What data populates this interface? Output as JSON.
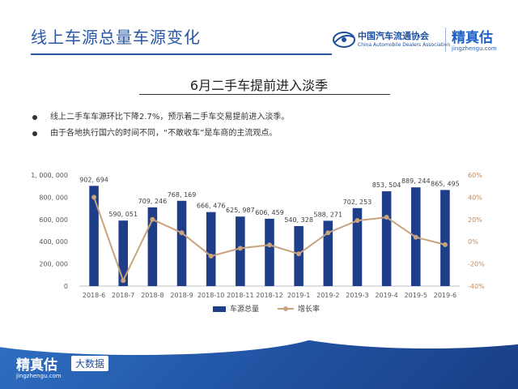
{
  "header": {
    "title": "线上车源总量车源变化",
    "logo_association_cn": "中国汽车流通协会",
    "logo_association_en": "China Automobile Dealers Association",
    "logo_brand_cn": "精真估",
    "logo_brand_en": "jingzhengu.com"
  },
  "subtitle": "6月二手车提前进入淡季",
  "bullets": [
    "线上二手车车源环比下降2.7%，预示着二手车交易提前进入淡季。",
    "由于各地执行国六的时间不同，“不敢收车”是车商的主流观点。"
  ],
  "footer": {
    "brand_cn": "精真估",
    "brand_en": "jingzhengu.com",
    "badge": "大数据"
  },
  "colors": {
    "title_blue": "#2a57a5",
    "bar": "#1f3e8a",
    "line": "#c9a27e",
    "footer": "#1f4f9e"
  },
  "chart_data": {
    "type": "bar",
    "categories": [
      "2018-6",
      "2018-7",
      "2018-8",
      "2018-9",
      "2018-10",
      "2018-11",
      "2018-12",
      "2019-1",
      "2019-2",
      "2019-3",
      "2019-4",
      "2019-5",
      "2019-6"
    ],
    "series": [
      {
        "name": "车源总量",
        "type": "bar",
        "axis": "left",
        "values": [
          902694,
          590051,
          709246,
          768169,
          666476,
          625987,
          606459,
          540328,
          588271,
          702253,
          853504,
          889244,
          865495
        ],
        "labels": [
          "902, 694",
          "590, 051",
          "709, 246",
          "768, 169",
          "666, 476",
          "625, 987",
          "606, 459",
          "540, 328",
          "588, 271",
          "702, 253",
          "853, 504",
          "889, 244",
          "865, 495"
        ]
      },
      {
        "name": "增长率",
        "type": "line",
        "axis": "right",
        "values": [
          0.4,
          -0.35,
          0.2,
          0.08,
          -0.13,
          -0.06,
          -0.03,
          -0.11,
          0.08,
          0.19,
          0.22,
          0.04,
          -0.027
        ]
      }
    ],
    "y_left": {
      "min": 0,
      "max": 1000000,
      "ticks": [
        0,
        200000,
        400000,
        600000,
        800000,
        1000000
      ],
      "tick_labels": [
        "0",
        "200, 000",
        "400, 000",
        "600, 000",
        "800, 000",
        "1, 000, 000"
      ]
    },
    "y_right": {
      "min": -0.4,
      "max": 0.6,
      "ticks": [
        -0.4,
        -0.2,
        0,
        0.2,
        0.4,
        0.6
      ],
      "tick_labels": [
        "-40%",
        "-20%",
        "0%",
        "20%",
        "40%",
        "60%"
      ]
    },
    "legend": {
      "placement": "bottom-center"
    },
    "grid": false
  }
}
